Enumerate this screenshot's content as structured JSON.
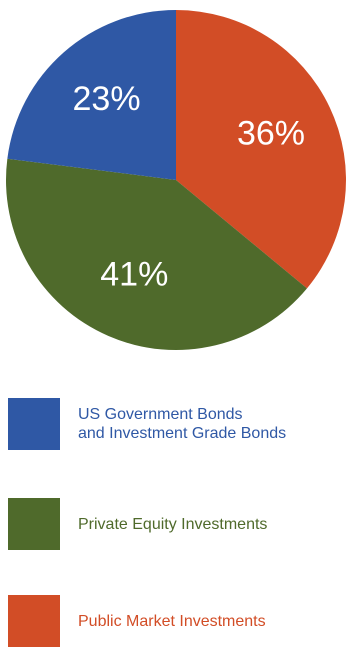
{
  "chart_data": {
    "type": "pie",
    "title": "",
    "start_angle_deg": 0,
    "direction": "clockwise",
    "slices": [
      {
        "name": "Public Market Investments",
        "value": 36,
        "label": "36%",
        "color": "#d24d26"
      },
      {
        "name": "Private Equity Investments",
        "value": 41,
        "label": "41%",
        "color": "#4f6a2b"
      },
      {
        "name": "US Government Bonds\nand Investment Grade Bonds",
        "value": 23,
        "label": "23%",
        "color": "#2f58a5"
      }
    ],
    "legend": "below"
  },
  "legend": {
    "items": [
      {
        "label": "US Government Bonds\nand Investment Grade Bonds",
        "color": "#2f58a5"
      },
      {
        "label": "Private Equity Investments",
        "color": "#4f6a2b"
      },
      {
        "label": "Public Market Investments",
        "color": "#d24d26"
      }
    ]
  }
}
